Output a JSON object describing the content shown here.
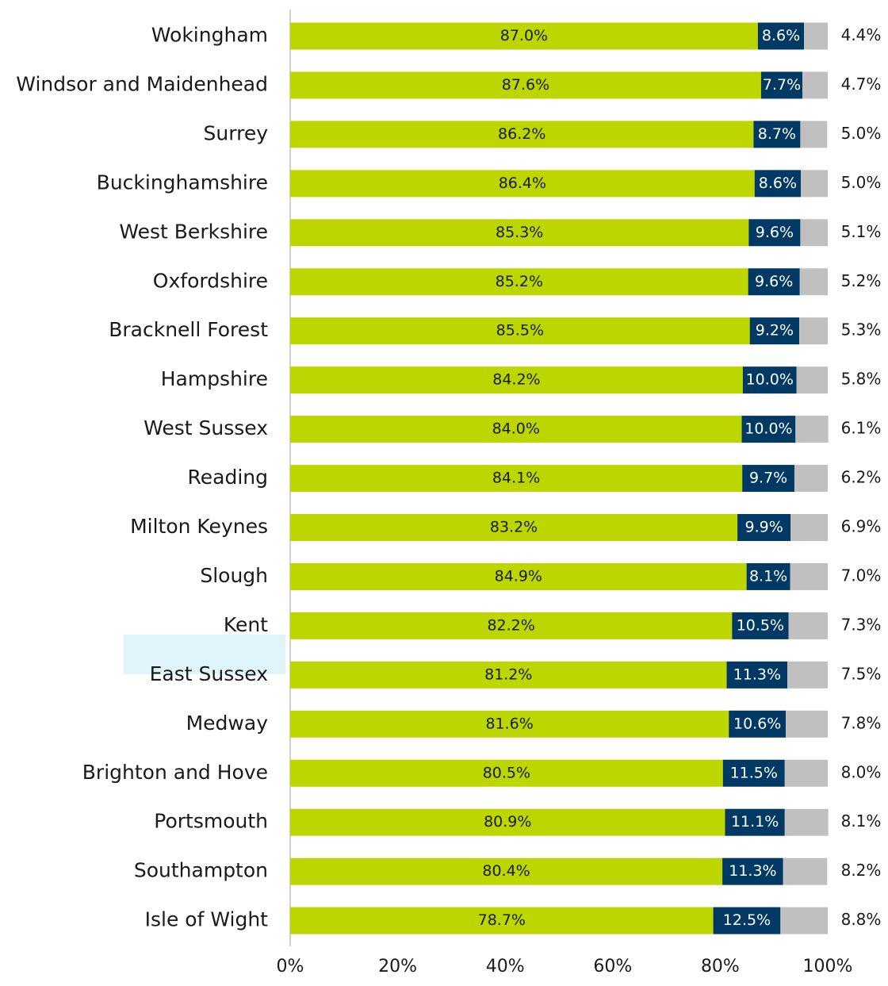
{
  "chart_data": {
    "type": "bar",
    "orientation": "horizontal",
    "stacked": true,
    "categories": [
      "Wokingham",
      "Windsor and Maidenhead",
      "Surrey",
      "Buckinghamshire",
      "West Berkshire",
      "Oxfordshire",
      "Bracknell Forest",
      "Hampshire",
      "West Sussex",
      "Reading",
      "Milton Keynes",
      "Slough",
      "Kent",
      "East Sussex",
      "Medway",
      "Brighton and Hove",
      "Portsmouth",
      "Southampton",
      "Isle of Wight"
    ],
    "highlight_category": "East Sussex",
    "series": [
      {
        "color": "#bed600",
        "label_color": "#1a1a1a",
        "label_position": "center",
        "values": [
          87.0,
          87.6,
          86.2,
          86.4,
          85.3,
          85.2,
          85.5,
          84.2,
          84.0,
          84.1,
          83.2,
          84.9,
          82.2,
          81.2,
          81.6,
          80.5,
          80.9,
          80.4,
          78.7
        ],
        "labels": [
          "87.0%",
          "87.6%",
          "86.2%",
          "86.4%",
          "85.3%",
          "85.2%",
          "85.5%",
          "84.2%",
          "84.0%",
          "84.1%",
          "83.2%",
          "84.9%",
          "82.2%",
          "81.2%",
          "81.6%",
          "80.5%",
          "80.9%",
          "80.4%",
          "78.7%"
        ]
      },
      {
        "color": "#003a64",
        "label_color": "#ffffff",
        "label_position": "center",
        "values": [
          8.6,
          7.7,
          8.7,
          8.6,
          9.6,
          9.6,
          9.2,
          10.0,
          10.0,
          9.7,
          9.9,
          8.1,
          10.5,
          11.3,
          10.6,
          11.5,
          11.1,
          11.3,
          12.5
        ],
        "labels": [
          "8.6%",
          "7.7%",
          "8.7%",
          "8.6%",
          "9.6%",
          "9.6%",
          "9.2%",
          "10.0%",
          "10.0%",
          "9.7%",
          "9.9%",
          "8.1%",
          "10.5%",
          "11.3%",
          "10.6%",
          "11.5%",
          "11.1%",
          "11.3%",
          "12.5%"
        ]
      },
      {
        "color": "#c0c0c0",
        "label_color": "#1a1a1a",
        "label_position": "outside",
        "values": [
          4.4,
          4.7,
          5.0,
          5.0,
          5.1,
          5.2,
          5.3,
          5.8,
          6.1,
          6.2,
          6.9,
          7.0,
          7.3,
          7.5,
          7.8,
          8.0,
          8.1,
          8.2,
          8.8
        ],
        "labels": [
          "4.4%",
          "4.7%",
          "5.0%",
          "5.0%",
          "5.1%",
          "5.2%",
          "5.3%",
          "5.8%",
          "6.1%",
          "6.2%",
          "6.9%",
          "7.0%",
          "7.3%",
          "7.5%",
          "7.8%",
          "8.0%",
          "8.1%",
          "8.2%",
          "8.8%"
        ]
      }
    ],
    "xlim": [
      0,
      100
    ],
    "xticks": [
      "0%",
      "20%",
      "40%",
      "60%",
      "80%",
      "100%"
    ],
    "title": "",
    "xlabel": "",
    "ylabel": "",
    "grid": false,
    "legend": "none"
  }
}
